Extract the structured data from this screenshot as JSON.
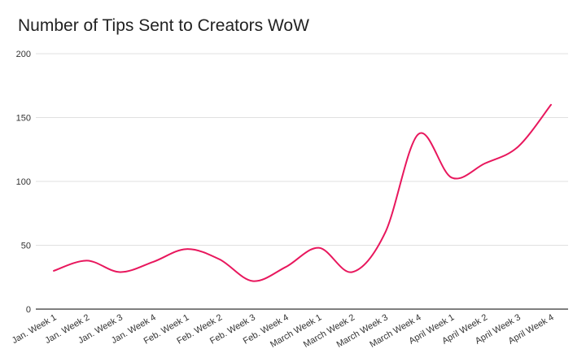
{
  "chart_data": {
    "type": "line",
    "title": "Number of Tips Sent to Creators WoW",
    "xlabel": "",
    "ylabel": "",
    "categories": [
      "Jan. Week 1",
      "Jan. Week 2",
      "Jan. Week 3",
      "Jan. Week 4",
      "Feb. Week 1",
      "Feb. Week 2",
      "Feb. Week 3",
      "Feb. Week 4",
      "March Week 1",
      "March Week 2",
      "March Week 3",
      "March Week 4",
      "April Week 1",
      "April Week 2",
      "April Week 3",
      "April Week 4"
    ],
    "series": [
      {
        "values": [
          30,
          38,
          29,
          37,
          47,
          39,
          22,
          33,
          48,
          29,
          60,
          137,
          103,
          114,
          127,
          160
        ]
      }
    ],
    "ylim": [
      0,
      200
    ],
    "yticks": [
      0,
      50,
      100,
      150,
      200
    ],
    "grid": true,
    "legend": "none",
    "line_color": "#e8175d",
    "grid_color": "#e0e0e0"
  }
}
